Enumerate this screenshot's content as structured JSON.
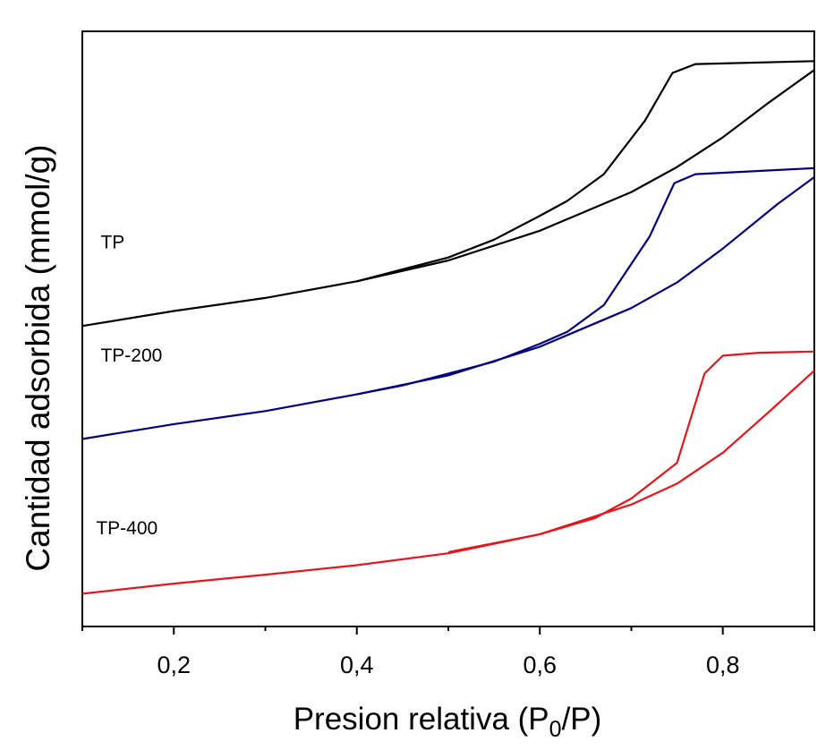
{
  "chart_data": {
    "type": "line",
    "title": "",
    "xlabel": "Presion relativa (P",
    "xlabel_sub": "0",
    "xlabel_end": "/P)",
    "ylabel": "Cantidad adsorbida (mmol/g)",
    "xlim": [
      0.1,
      0.9
    ],
    "ylim": [
      0,
      10
    ],
    "x_ticks": [
      0.2,
      0.4,
      0.6,
      0.8
    ],
    "x_tick_labels": [
      "0,2",
      "0,4",
      "0,6",
      "0,8"
    ],
    "x_minor_ticks": [
      0.1,
      0.3,
      0.5,
      0.7,
      0.9
    ],
    "y_ticks_shown": false,
    "grid": false,
    "legend": "none",
    "series": [
      {
        "name": "TP",
        "color": "#000000",
        "label_pos": [
          0.12,
          6.35
        ],
        "adsorption": [
          [
            0.1,
            5.05
          ],
          [
            0.2,
            5.3
          ],
          [
            0.3,
            5.52
          ],
          [
            0.4,
            5.8
          ],
          [
            0.5,
            6.15
          ],
          [
            0.6,
            6.65
          ],
          [
            0.7,
            7.3
          ],
          [
            0.75,
            7.72
          ],
          [
            0.8,
            8.22
          ],
          [
            0.85,
            8.8
          ],
          [
            0.9,
            9.35
          ]
        ],
        "desorption": [
          [
            0.9,
            9.5
          ],
          [
            0.77,
            9.45
          ],
          [
            0.745,
            9.3
          ],
          [
            0.715,
            8.5
          ],
          [
            0.67,
            7.6
          ],
          [
            0.63,
            7.15
          ],
          [
            0.6,
            6.9
          ],
          [
            0.55,
            6.5
          ],
          [
            0.5,
            6.2
          ],
          [
            0.45,
            6.0
          ],
          [
            0.4,
            5.8
          ]
        ]
      },
      {
        "name": "TP-200",
        "color": "#000080",
        "label_pos": [
          0.12,
          4.45
        ],
        "adsorption": [
          [
            0.1,
            3.15
          ],
          [
            0.2,
            3.4
          ],
          [
            0.3,
            3.62
          ],
          [
            0.4,
            3.9
          ],
          [
            0.5,
            4.22
          ],
          [
            0.6,
            4.7
          ],
          [
            0.7,
            5.35
          ],
          [
            0.75,
            5.78
          ],
          [
            0.8,
            6.35
          ],
          [
            0.86,
            7.1
          ],
          [
            0.9,
            7.55
          ]
        ],
        "desorption": [
          [
            0.9,
            7.7
          ],
          [
            0.77,
            7.6
          ],
          [
            0.747,
            7.45
          ],
          [
            0.72,
            6.55
          ],
          [
            0.67,
            5.4
          ],
          [
            0.63,
            4.95
          ],
          [
            0.6,
            4.75
          ],
          [
            0.55,
            4.45
          ],
          [
            0.5,
            4.25
          ],
          [
            0.45,
            4.05
          ],
          [
            0.4,
            3.9
          ]
        ]
      },
      {
        "name": "TP-400",
        "color": "#e8141c",
        "label_pos": [
          0.115,
          1.55
        ],
        "adsorption": [
          [
            0.1,
            0.55
          ],
          [
            0.2,
            0.72
          ],
          [
            0.3,
            0.87
          ],
          [
            0.4,
            1.03
          ],
          [
            0.5,
            1.23
          ],
          [
            0.6,
            1.55
          ],
          [
            0.7,
            2.05
          ],
          [
            0.75,
            2.4
          ],
          [
            0.8,
            2.92
          ],
          [
            0.85,
            3.6
          ],
          [
            0.9,
            4.3
          ]
        ],
        "desorption": [
          [
            0.9,
            4.62
          ],
          [
            0.84,
            4.6
          ],
          [
            0.8,
            4.55
          ],
          [
            0.78,
            4.25
          ],
          [
            0.75,
            2.75
          ],
          [
            0.7,
            2.15
          ],
          [
            0.66,
            1.82
          ],
          [
            0.6,
            1.55
          ],
          [
            0.55,
            1.4
          ],
          [
            0.5,
            1.25
          ]
        ]
      }
    ]
  }
}
